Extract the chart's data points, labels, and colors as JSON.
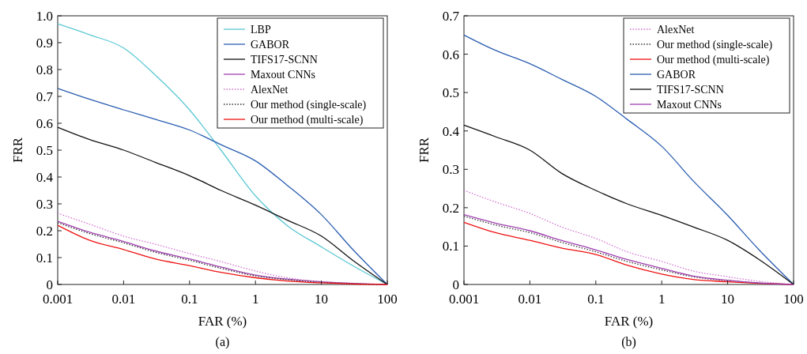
{
  "chart_data": [
    {
      "type": "line",
      "xlabel": "FAR (%)",
      "ylabel": "FRR",
      "annotations": [
        "(a)"
      ],
      "log": "x",
      "legend": "top right",
      "xlim": [
        0.001,
        100
      ],
      "xticks": [
        0.001,
        0.01,
        0.1,
        1,
        10,
        100
      ],
      "ylim": [
        0,
        1
      ],
      "yticks": [
        0,
        0.1,
        0.2,
        0.3,
        0.4,
        0.5,
        0.6,
        0.7,
        0.8,
        0.9,
        {
          "value": 1,
          "label": "1.0"
        }
      ],
      "x": [
        0.001,
        0.003,
        0.01,
        0.03,
        0.1,
        0.3,
        1,
        3,
        10,
        30,
        100
      ],
      "series": [
        {
          "name": "LBP",
          "color": "#5bc8d4",
          "values": [
            0.97,
            0.93,
            0.88,
            0.78,
            0.65,
            0.5,
            0.33,
            0.22,
            0.14,
            0.07,
            0
          ]
        },
        {
          "name": "GABOR",
          "color": "#2a5db0",
          "values": [
            0.73,
            0.69,
            0.65,
            0.615,
            0.575,
            0.52,
            0.46,
            0.37,
            0.26,
            0.13,
            0
          ]
        },
        {
          "name": "TIFS17-SCNN",
          "color": "#111111",
          "values": [
            0.585,
            0.54,
            0.5,
            0.455,
            0.405,
            0.35,
            0.295,
            0.24,
            0.18,
            0.09,
            0
          ]
        },
        {
          "name": "Maxout CNNs",
          "color": "#a040b0",
          "values": [
            0.235,
            0.195,
            0.16,
            0.125,
            0.095,
            0.065,
            0.035,
            0.02,
            0.01,
            0.004,
            0
          ]
        },
        {
          "name": "AlexNet",
          "color": "#d070d0",
          "line_style": "dotted",
          "values": [
            0.265,
            0.225,
            0.18,
            0.15,
            0.115,
            0.085,
            0.05,
            0.025,
            0.01,
            0.004,
            0
          ]
        },
        {
          "name": "Our method (single-scale)",
          "color": "#333333",
          "line_style": "dotted",
          "values": [
            0.23,
            0.19,
            0.155,
            0.12,
            0.09,
            0.06,
            0.032,
            0.018,
            0.008,
            0.003,
            0
          ]
        },
        {
          "name": "Our method (multi-scale)",
          "color": "#ee1111",
          "values": [
            0.22,
            0.165,
            0.13,
            0.095,
            0.07,
            0.045,
            0.025,
            0.013,
            0.006,
            0.002,
            0
          ]
        }
      ]
    },
    {
      "type": "line",
      "xlabel": "FAR (%)",
      "ylabel": "FRR",
      "annotations": [
        "(b)"
      ],
      "log": "x",
      "legend": "top right",
      "xlim": [
        0.001,
        100
      ],
      "xticks": [
        0.001,
        0.01,
        0.1,
        1,
        10,
        100
      ],
      "ylim": [
        0,
        0.7
      ],
      "yticks": [
        0,
        0.1,
        0.2,
        0.3,
        0.4,
        0.5,
        0.6,
        0.7
      ],
      "x": [
        0.001,
        0.003,
        0.01,
        0.03,
        0.1,
        0.3,
        1,
        3,
        10,
        30,
        100
      ],
      "series": [
        {
          "name": "AlexNet",
          "color": "#d070d0",
          "line_style": "dotted",
          "values": [
            0.245,
            0.215,
            0.185,
            0.15,
            0.12,
            0.085,
            0.06,
            0.035,
            0.02,
            0.008,
            0
          ]
        },
        {
          "name": "Our method (single-scale)",
          "color": "#333333",
          "line_style": "dotted",
          "values": [
            0.178,
            0.155,
            0.135,
            0.11,
            0.085,
            0.06,
            0.038,
            0.02,
            0.01,
            0.004,
            0
          ]
        },
        {
          "name": "Our method (multi-scale)",
          "color": "#ee1111",
          "values": [
            0.162,
            0.135,
            0.115,
            0.095,
            0.078,
            0.05,
            0.027,
            0.013,
            0.007,
            0.003,
            0
          ]
        },
        {
          "name": "GABOR",
          "color": "#2a5db0",
          "values": [
            0.65,
            0.61,
            0.575,
            0.535,
            0.49,
            0.43,
            0.36,
            0.27,
            0.18,
            0.09,
            0
          ]
        },
        {
          "name": "TIFS17-SCNN",
          "color": "#111111",
          "values": [
            0.415,
            0.385,
            0.35,
            0.29,
            0.245,
            0.21,
            0.18,
            0.15,
            0.115,
            0.065,
            0
          ]
        },
        {
          "name": "Maxout CNNs",
          "color": "#a040b0",
          "values": [
            0.182,
            0.16,
            0.14,
            0.115,
            0.09,
            0.065,
            0.042,
            0.022,
            0.011,
            0.004,
            0
          ]
        }
      ]
    }
  ]
}
